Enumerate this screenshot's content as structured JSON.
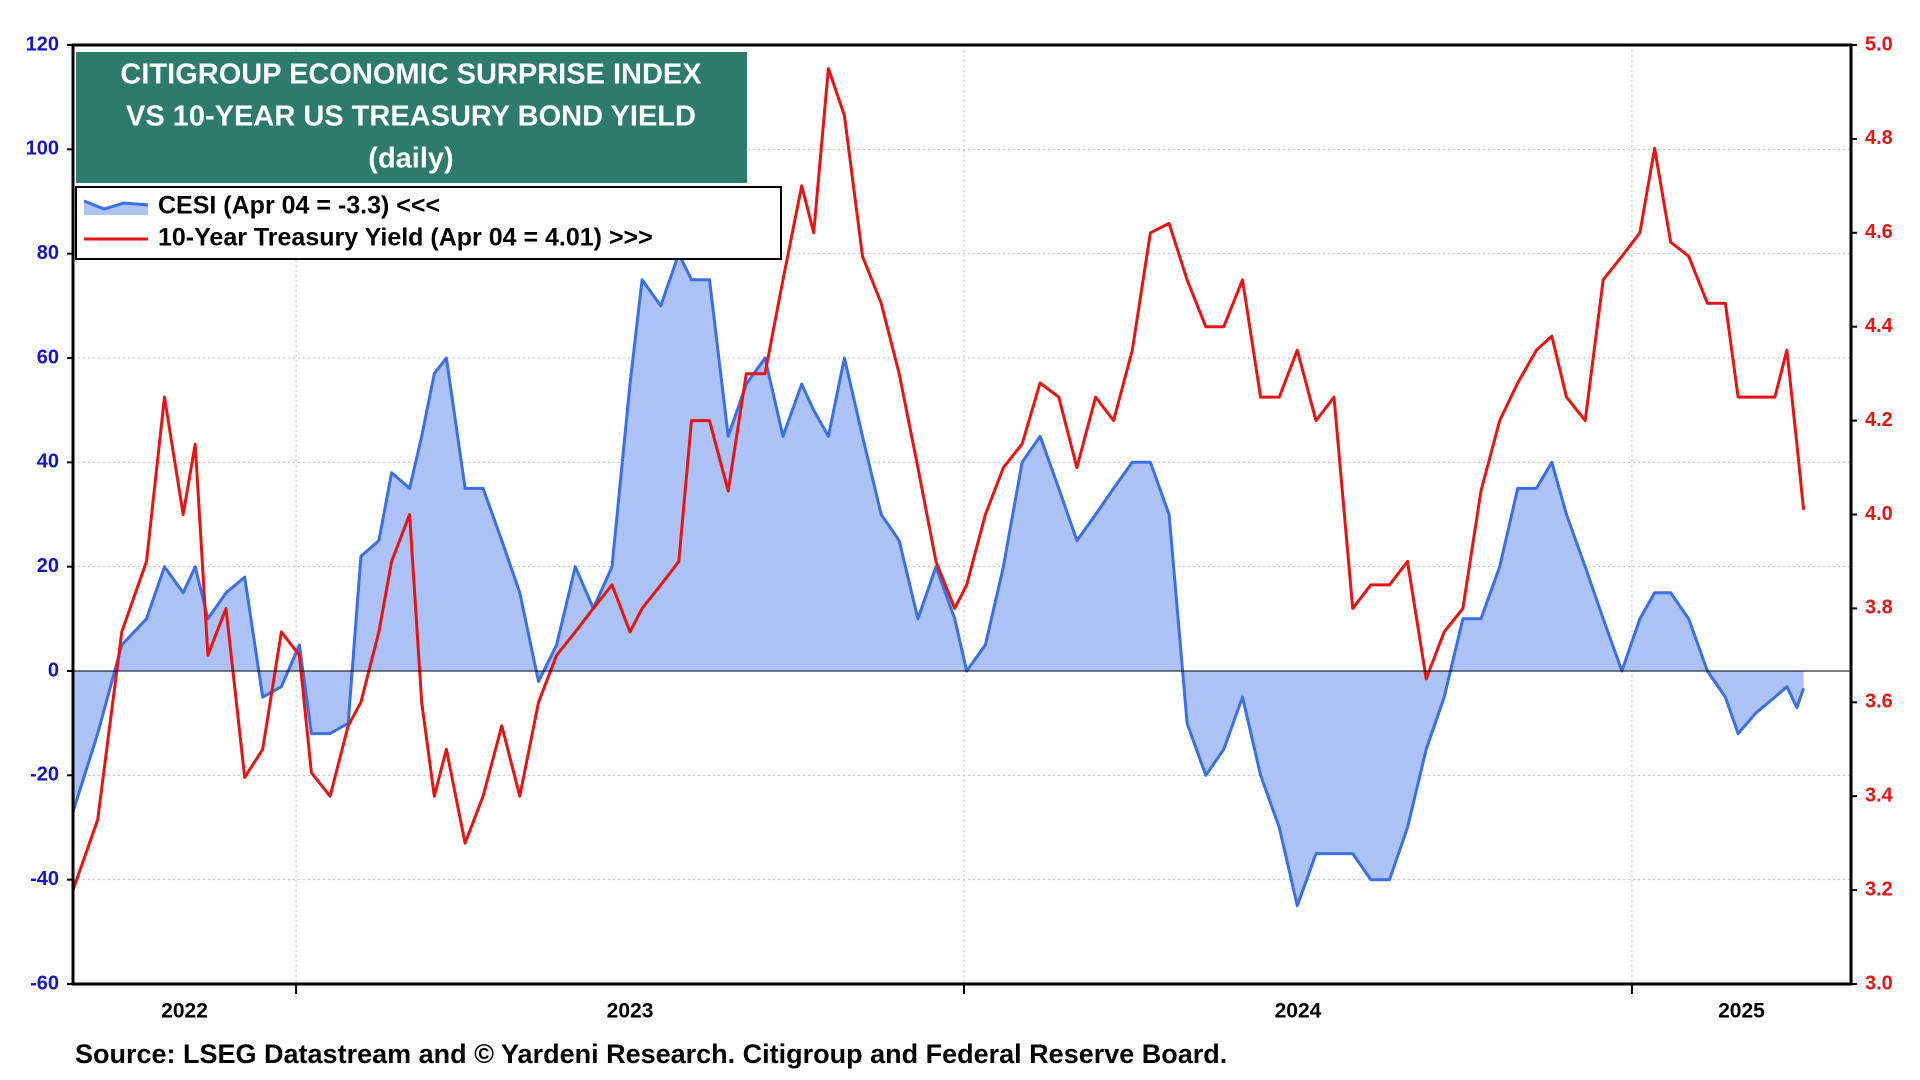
{
  "chart_data": {
    "type": "line",
    "title": [
      "CITIGROUP ECONOMIC SURPRISE INDEX",
      "VS 10-YEAR US TREASURY BOND YIELD"
    ],
    "subtitle": "(daily)",
    "source": "Source: LSEG Datastream and © Yardeni Research. Citigroup and Federal Reserve Board.",
    "x": [
      2022.666,
      2022.703,
      2022.739,
      2022.776,
      2022.803,
      2022.831,
      2022.849,
      2022.868,
      2022.895,
      2022.923,
      2022.95,
      2022.978,
      2023.005,
      2023.023,
      2023.051,
      2023.078,
      2023.097,
      2023.124,
      2023.143,
      2023.17,
      2023.188,
      2023.207,
      2023.225,
      2023.253,
      2023.28,
      2023.308,
      2023.335,
      2023.363,
      2023.39,
      2023.418,
      2023.445,
      2023.473,
      2023.5,
      2023.518,
      2023.546,
      2023.573,
      2023.592,
      2023.619,
      2023.647,
      2023.674,
      2023.702,
      2023.729,
      2023.757,
      2023.775,
      2023.797,
      2023.821,
      2023.848,
      2023.876,
      2023.903,
      2023.931,
      2023.958,
      2023.986,
      2024.004,
      2024.032,
      2024.059,
      2024.087,
      2024.114,
      2024.142,
      2024.169,
      2024.197,
      2024.224,
      2024.252,
      2024.279,
      2024.307,
      2024.334,
      2024.362,
      2024.389,
      2024.417,
      2024.444,
      2024.472,
      2024.499,
      2024.527,
      2024.554,
      2024.582,
      2024.609,
      2024.637,
      2024.664,
      2024.692,
      2024.719,
      2024.747,
      2024.774,
      2024.802,
      2024.829,
      2024.857,
      2024.88,
      2024.902,
      2024.93,
      2024.957,
      2024.985,
      2025.012,
      2025.034,
      2025.058,
      2025.085,
      2025.113,
      2025.14,
      2025.159,
      2025.186,
      2025.214,
      2025.232,
      2025.247,
      2025.257
    ],
    "series": [
      {
        "name": "CESI (Apr 04 = -3.3) <<<",
        "color": "#3b6fe6",
        "fill": "#adc2f7",
        "axis": "y",
        "values": [
          -27,
          -12,
          5,
          10,
          20,
          15,
          20,
          10,
          15,
          18,
          -5,
          -3,
          5,
          -12,
          -12,
          -10,
          22,
          25,
          38,
          35,
          45,
          57,
          60,
          35,
          35,
          25,
          15,
          -2,
          5,
          20,
          12,
          20,
          55,
          75,
          70,
          80,
          75,
          75,
          45,
          55,
          60,
          45,
          55,
          50,
          45,
          60,
          45,
          30,
          25,
          10,
          20,
          10,
          0,
          5,
          20,
          40,
          45,
          35,
          25,
          30,
          35,
          40,
          40,
          30,
          -10,
          -20,
          -15,
          -5,
          -20,
          -30,
          -45,
          -35,
          -35,
          -35,
          -40,
          -40,
          -30,
          -15,
          -5,
          10,
          10,
          20,
          35,
          35,
          40,
          30,
          20,
          10,
          0,
          10,
          15,
          15,
          10,
          0,
          -5,
          -12,
          -8,
          -5,
          -3,
          -7,
          -3.3
        ]
      },
      {
        "name": "10-Year Treasury Yield (Apr 04 = 4.01) >>>",
        "color": "#e81414",
        "axis": "y2",
        "values": [
          3.2,
          3.35,
          3.75,
          3.9,
          4.25,
          4.0,
          4.15,
          3.7,
          3.8,
          3.44,
          3.5,
          3.75,
          3.7,
          3.45,
          3.4,
          3.55,
          3.6,
          3.75,
          3.9,
          4.0,
          3.6,
          3.4,
          3.5,
          3.3,
          3.4,
          3.55,
          3.4,
          3.6,
          3.7,
          3.75,
          3.8,
          3.85,
          3.75,
          3.8,
          3.85,
          3.9,
          4.2,
          4.2,
          4.05,
          4.3,
          4.3,
          4.5,
          4.7,
          4.6,
          4.95,
          4.85,
          4.55,
          4.45,
          4.3,
          4.1,
          3.9,
          3.8,
          3.85,
          4.0,
          4.1,
          4.15,
          4.28,
          4.25,
          4.1,
          4.25,
          4.2,
          4.35,
          4.6,
          4.62,
          4.5,
          4.4,
          4.4,
          4.5,
          4.25,
          4.25,
          4.35,
          4.2,
          4.25,
          3.8,
          3.85,
          3.85,
          3.9,
          3.65,
          3.75,
          3.8,
          4.05,
          4.2,
          4.28,
          4.35,
          4.38,
          4.25,
          4.2,
          4.5,
          4.55,
          4.6,
          4.78,
          4.58,
          4.55,
          4.45,
          4.45,
          4.25,
          4.25,
          4.25,
          4.35,
          4.15,
          4.01
        ]
      }
    ],
    "xlim": [
      2022.666,
      2025.328
    ],
    "xticks": [
      2023,
      2024,
      2025
    ],
    "xtick_labels": [
      2022,
      2023,
      2024,
      2025
    ],
    "ylim": [
      -60,
      120
    ],
    "yticks": [
      -60,
      -40,
      -20,
      0,
      20,
      40,
      60,
      80,
      100,
      120
    ],
    "y2lim": [
      3,
      5
    ],
    "y2ticks": [
      {
        "value": 3,
        "label": "3.0"
      },
      3.2,
      3.4,
      3.6,
      3.8,
      {
        "value": 4,
        "label": "4.0"
      },
      4.2,
      4.4,
      4.6,
      4.8,
      {
        "value": 5,
        "label": "5.0"
      }
    ],
    "grid": true,
    "left_axis_color": "#1414c8",
    "right_axis_color": "#e81414",
    "title_box_color": "#2e7b6e"
  }
}
